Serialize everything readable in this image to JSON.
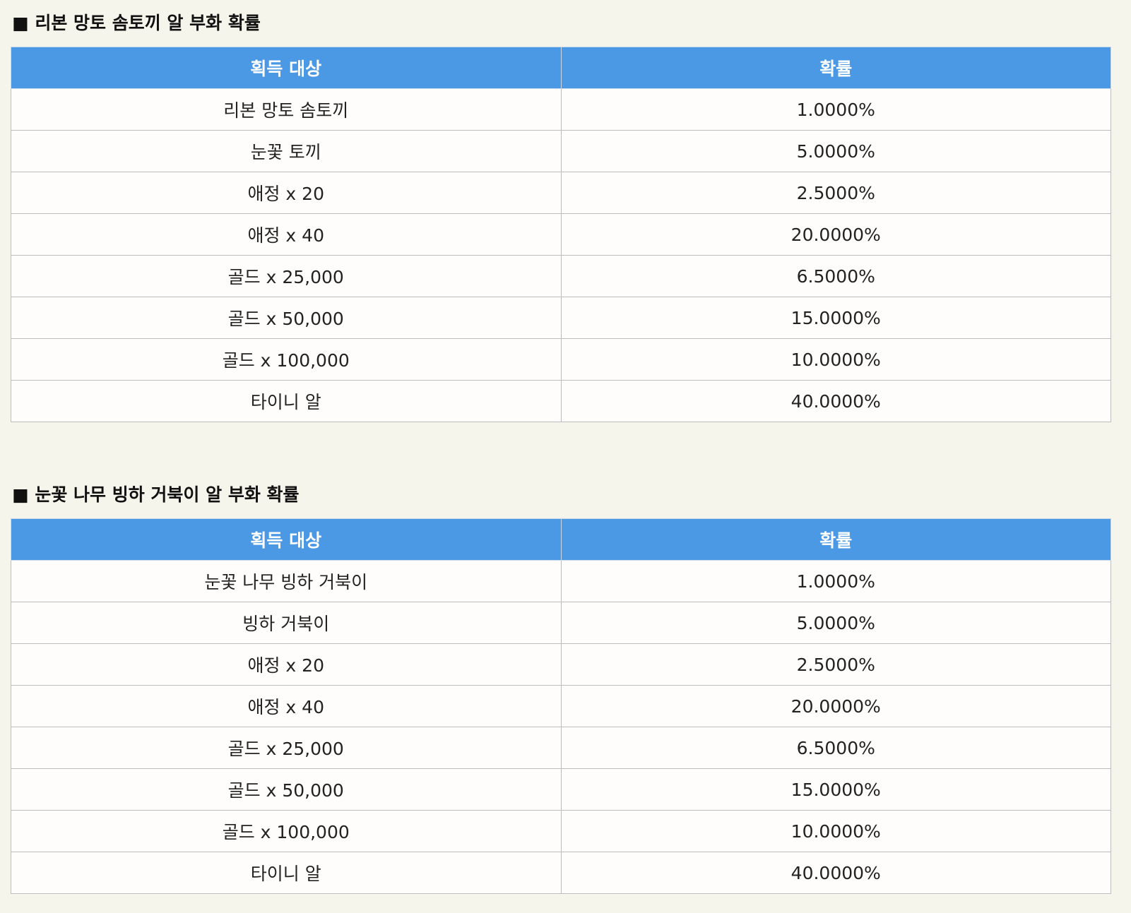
{
  "sections": [
    {
      "title": "■ 리본 망토 솜토끼 알 부화 확률",
      "header": [
        "획득 대상",
        "확률"
      ],
      "rows": [
        [
          "리본 망토 솜토끼",
          "1.0000%"
        ],
        [
          "눈꽃 토끼",
          "5.0000%"
        ],
        [
          "애정 x 20",
          "2.5000%"
        ],
        [
          "애정 x 40",
          "20.0000%"
        ],
        [
          "골드 x 25,000",
          "6.5000%"
        ],
        [
          "골드 x 50,000",
          "15.0000%"
        ],
        [
          "골드 x 100,000",
          "10.0000%"
        ],
        [
          "타이니 알",
          "40.0000%"
        ]
      ]
    },
    {
      "title": "■ 눈꽃 나무 빙하 거북이 알 부화 확률",
      "header": [
        "획득 대상",
        "확률"
      ],
      "rows": [
        [
          "눈꽃 나무 빙하 거북이",
          "1.0000%"
        ],
        [
          "빙하 거북이",
          "5.0000%"
        ],
        [
          "애정 x 20",
          "2.5000%"
        ],
        [
          "애정 x 40",
          "20.0000%"
        ],
        [
          "골드 x 25,000",
          "6.5000%"
        ],
        [
          "골드 x 50,000",
          "15.0000%"
        ],
        [
          "골드 x 100,000",
          "10.0000%"
        ],
        [
          "타이니 알",
          "40.0000%"
        ]
      ]
    }
  ]
}
